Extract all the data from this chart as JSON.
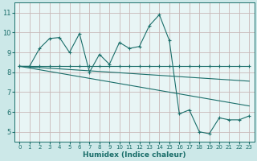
{
  "bg_color": "#cce8e8",
  "plot_bg_color": "#e8f5f5",
  "grid_color": "#c8b8b8",
  "line_color": "#1a6e6a",
  "xlabel": "Humidex (Indice chaleur)",
  "xlim": [
    -0.5,
    23.5
  ],
  "ylim": [
    4.5,
    11.5
  ],
  "yticks": [
    5,
    6,
    7,
    8,
    9,
    10,
    11
  ],
  "xticks": [
    0,
    1,
    2,
    3,
    4,
    5,
    6,
    7,
    8,
    9,
    10,
    11,
    12,
    13,
    14,
    15,
    16,
    17,
    18,
    19,
    20,
    21,
    22,
    23
  ],
  "zigzag_x": [
    0,
    1,
    2,
    3,
    4,
    5,
    6,
    7,
    8,
    9,
    10,
    11,
    12,
    13,
    14,
    15,
    16,
    17,
    18,
    19,
    20,
    21,
    22,
    23
  ],
  "zigzag_y": [
    8.3,
    8.3,
    9.2,
    9.7,
    9.75,
    9.0,
    9.95,
    8.0,
    8.9,
    8.4,
    9.5,
    9.2,
    9.3,
    10.35,
    10.9,
    9.6,
    5.9,
    6.1,
    5.0,
    4.9,
    5.7,
    5.6,
    5.6,
    5.8
  ],
  "flat_x": [
    0,
    1,
    2,
    3,
    4,
    5,
    6,
    7,
    8,
    9,
    10,
    11,
    12,
    13,
    14,
    15,
    16,
    17,
    18,
    19,
    20,
    21,
    22,
    23
  ],
  "flat_y": [
    8.3,
    8.3,
    8.3,
    8.3,
    8.3,
    8.3,
    8.3,
    8.3,
    8.3,
    8.3,
    8.3,
    8.3,
    8.3,
    8.3,
    8.3,
    8.3,
    8.3,
    8.3,
    8.3,
    8.3,
    8.3,
    8.3,
    8.3,
    8.3
  ],
  "trend1_x": [
    0,
    23
  ],
  "trend1_y": [
    8.3,
    7.55
  ],
  "trend2_x": [
    0,
    23
  ],
  "trend2_y": [
    8.3,
    6.3
  ]
}
